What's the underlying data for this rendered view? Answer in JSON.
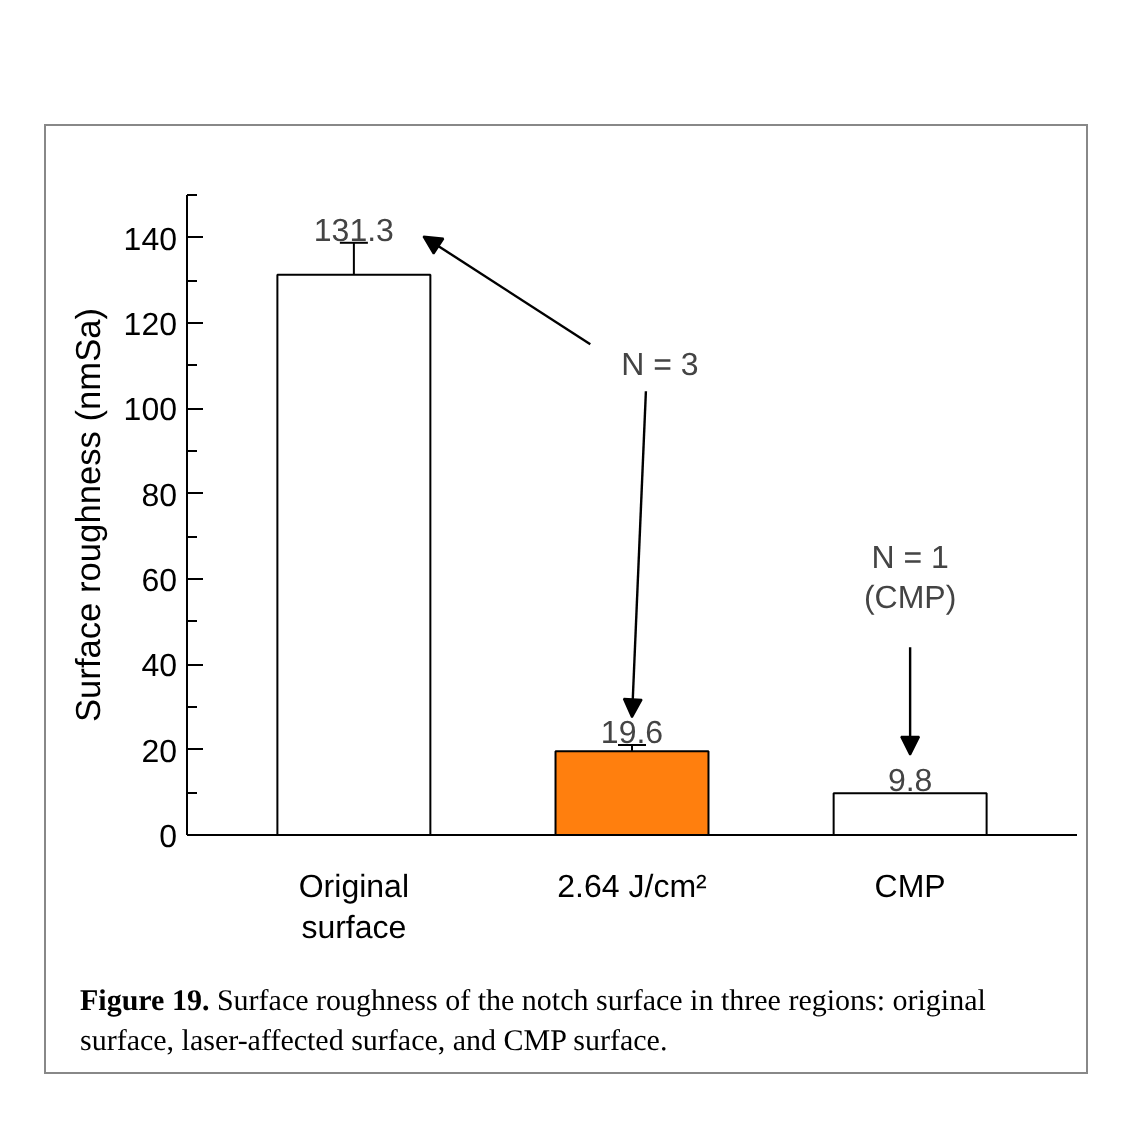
{
  "chart_data": {
    "type": "bar",
    "ylabel": "Surface roughness (nmSa)",
    "categories": [
      "Original\nsurface",
      "2.64 J/cm²",
      "CMP"
    ],
    "values": [
      131.3,
      19.6,
      9.8
    ],
    "colors": [
      "#ffffff",
      "#ff7f0e",
      "#ffffff"
    ],
    "errors": [
      7.5,
      1.5,
      null
    ],
    "data_labels": true,
    "ylim": [
      0,
      150
    ],
    "yticks": [
      0,
      20,
      40,
      60,
      80,
      100,
      120,
      140
    ],
    "grid": false,
    "annotations": [
      "N = 3",
      "N = 1\n(CMP)",
      "Figure 19. Surface roughness of the notch surface in three regions: original surface, laser-affected surface, and CMP surface."
    ]
  }
}
